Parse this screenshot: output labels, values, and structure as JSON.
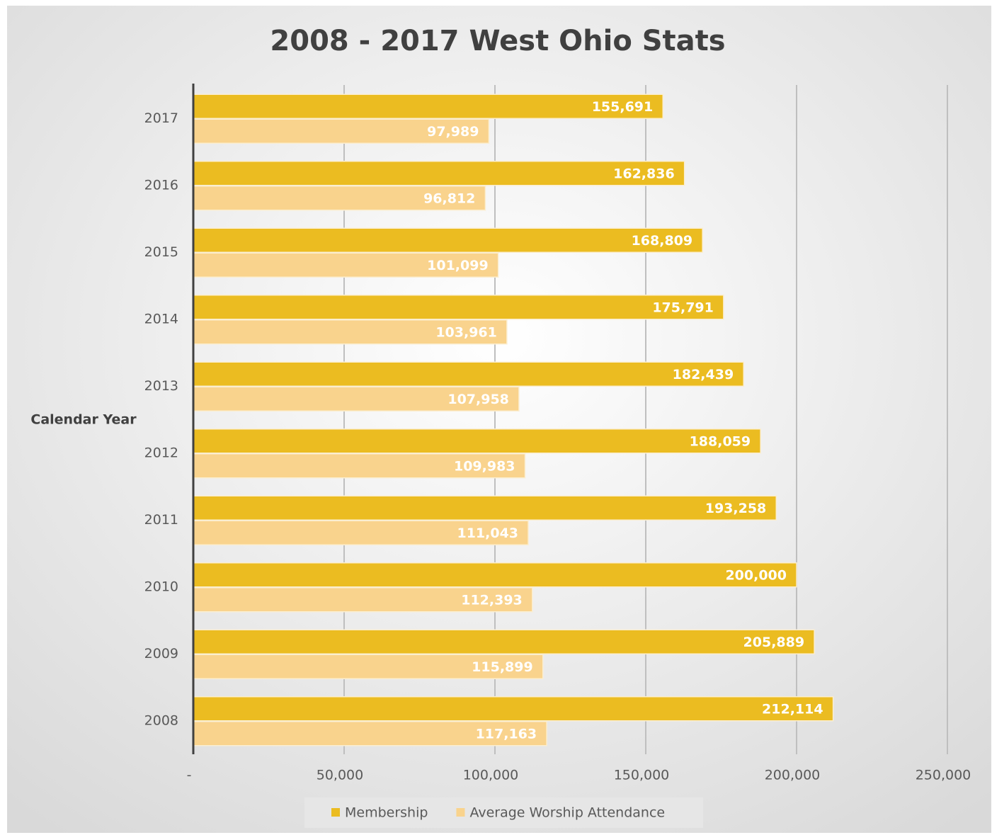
{
  "chart_data": {
    "type": "bar",
    "orientation": "horizontal",
    "title": "2008 - 2017 West Ohio Stats",
    "y_label": "Calendar Year",
    "categories": [
      "2017",
      "2016",
      "2015",
      "2014",
      "2013",
      "2012",
      "2011",
      "2010",
      "2009",
      "2008"
    ],
    "series": [
      {
        "name": "Membership",
        "color": "#ebbc21",
        "values": [
          155691,
          162836,
          168809,
          175791,
          182439,
          188059,
          193258,
          200000,
          205889,
          212114
        ],
        "value_labels": [
          "155,691",
          "162,836",
          "168,809",
          "175,791",
          "182,439",
          "188,059",
          "193,258",
          "200,000",
          "205,889",
          "212,114"
        ]
      },
      {
        "name": "Average Worship Attendance",
        "color": "#f9d38d",
        "values": [
          97989,
          96812,
          101099,
          103961,
          107958,
          109983,
          111043,
          112393,
          115899,
          117163
        ],
        "value_labels": [
          "97,989",
          "96,812",
          "101,099",
          "103,961",
          "107,958",
          "109,983",
          "111,043",
          "112,393",
          "115,899",
          "117,163"
        ]
      }
    ],
    "xlim": [
      0,
      250000
    ],
    "xticks": [
      {
        "value": 0,
        "label": "-"
      },
      {
        "value": 50000,
        "label": "50,000"
      },
      {
        "value": 100000,
        "label": "100,000"
      },
      {
        "value": 150000,
        "label": "150,000"
      },
      {
        "value": 200000,
        "label": "200,000"
      },
      {
        "value": 250000,
        "label": "250,000"
      }
    ],
    "grid": true,
    "legend": "bottom"
  }
}
